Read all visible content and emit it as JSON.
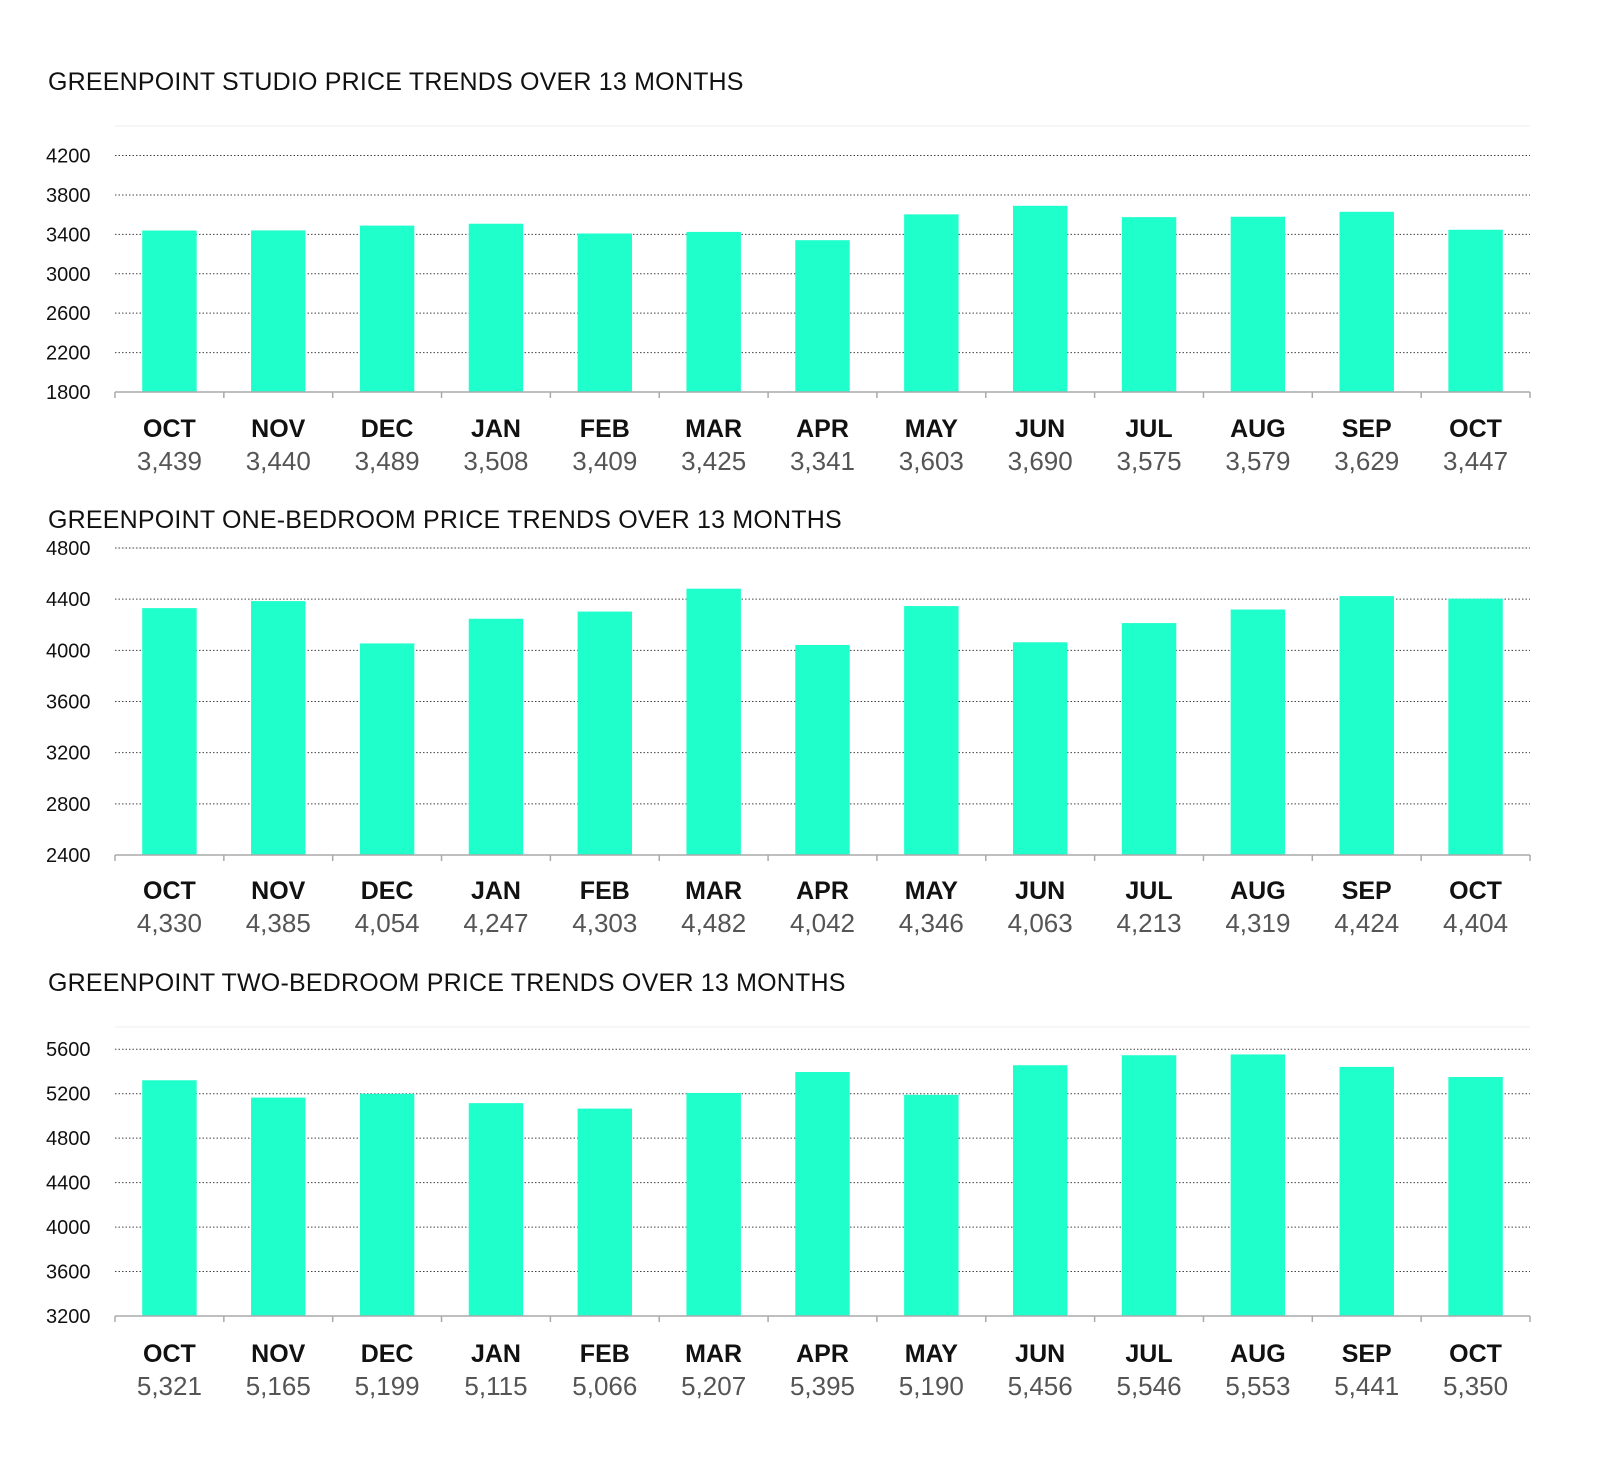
{
  "colors": {
    "bar": "#1fffcc",
    "grid": "#444444",
    "axis": "#aaaaaa",
    "value_text": "#555555",
    "text": "#111111"
  },
  "chart_data": [
    {
      "type": "bar",
      "title": "GREENPOINT STUDIO PRICE TRENDS OVER 13 MONTHS",
      "categories": [
        "OCT",
        "NOV",
        "DEC",
        "JAN",
        "FEB",
        "MAR",
        "APR",
        "MAY",
        "JUN",
        "JUL",
        "AUG",
        "SEP",
        "OCT"
      ],
      "values": [
        3439,
        3440,
        3489,
        3508,
        3409,
        3425,
        3341,
        3603,
        3690,
        3575,
        3579,
        3629,
        3447
      ],
      "value_labels": [
        "3,439",
        "3,440",
        "3,489",
        "3,508",
        "3,409",
        "3,425",
        "3,341",
        "3,603",
        "3,690",
        "3,575",
        "3,579",
        "3,629",
        "3,447"
      ],
      "yticks": [
        1800,
        2200,
        2600,
        3000,
        3400,
        3800,
        4200
      ],
      "ylim": [
        1800,
        4500
      ],
      "xlabel": "",
      "ylabel": "",
      "grid": true,
      "legend": "none"
    },
    {
      "type": "bar",
      "title": "GREENPOINT ONE-BEDROOM PRICE TRENDS OVER 13 MONTHS",
      "categories": [
        "OCT",
        "NOV",
        "DEC",
        "JAN",
        "FEB",
        "MAR",
        "APR",
        "MAY",
        "JUN",
        "JUL",
        "AUG",
        "SEP",
        "OCT"
      ],
      "values": [
        4330,
        4385,
        4054,
        4247,
        4303,
        4482,
        4042,
        4346,
        4063,
        4213,
        4319,
        4424,
        4404
      ],
      "value_labels": [
        "4,330",
        "4,385",
        "4,054",
        "4,247",
        "4,303",
        "4,482",
        "4,042",
        "4,346",
        "4,063",
        "4,213",
        "4,319",
        "4,424",
        "4,404"
      ],
      "yticks": [
        2400,
        2800,
        3200,
        3600,
        4000,
        4400,
        4800
      ],
      "ylim": [
        2400,
        4800
      ],
      "xlabel": "",
      "ylabel": "",
      "grid": true,
      "legend": "none"
    },
    {
      "type": "bar",
      "title": "GREENPOINT TWO-BEDROOM PRICE TRENDS OVER 13 MONTHS",
      "categories": [
        "OCT",
        "NOV",
        "DEC",
        "JAN",
        "FEB",
        "MAR",
        "APR",
        "MAY",
        "JUN",
        "JUL",
        "AUG",
        "SEP",
        "OCT"
      ],
      "values": [
        5321,
        5165,
        5199,
        5115,
        5066,
        5207,
        5395,
        5190,
        5456,
        5546,
        5553,
        5441,
        5350
      ],
      "value_labels": [
        "5,321",
        "5,165",
        "5,199",
        "5,115",
        "5,066",
        "5,207",
        "5,395",
        "5,190",
        "5,456",
        "5,546",
        "5,553",
        "5,441",
        "5,350"
      ],
      "yticks": [
        3200,
        3600,
        4000,
        4400,
        4800,
        5200,
        5600
      ],
      "ylim": [
        3200,
        5800
      ],
      "xlabel": "",
      "ylabel": "",
      "grid": true,
      "legend": "none"
    }
  ]
}
